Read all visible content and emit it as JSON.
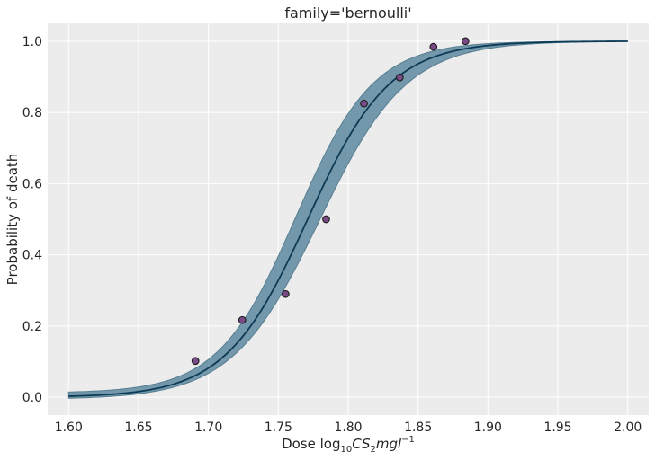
{
  "chart_data": {
    "type": "scatter",
    "title": "family='bernoulli'",
    "xlabel": {
      "prefix": "Dose log",
      "sub": "10",
      "math_a": "CS",
      "math_sub": "2",
      "math_b": "mgl",
      "sup": "−1"
    },
    "ylabel": "Probability of death",
    "xlim": [
      1.585,
      2.015
    ],
    "ylim": [
      -0.05,
      1.05
    ],
    "x_ticks": [
      "1.60",
      "1.65",
      "1.70",
      "1.75",
      "1.80",
      "1.85",
      "1.90",
      "1.95",
      "2.00"
    ],
    "y_ticks": [
      "0.0",
      "0.2",
      "0.4",
      "0.6",
      "0.8",
      "1.0"
    ],
    "grid": true,
    "background": "#ececec",
    "observed": {
      "x": [
        1.6907,
        1.7242,
        1.7552,
        1.7842,
        1.8113,
        1.8369,
        1.861,
        1.8839
      ],
      "y": [
        0.102,
        0.217,
        0.29,
        0.5,
        0.825,
        0.898,
        0.984,
        1.0
      ],
      "color": "#7a4a86",
      "edge": "#1c1c1c"
    },
    "fit": {
      "x0": 1.771,
      "k": 34.0,
      "band_low": {
        "x0": 1.7795,
        "k": 32.0,
        "floor": -0.006
      },
      "band_high": {
        "x0": 1.7625,
        "k": 36.0,
        "floor": 0.012
      },
      "range": [
        1.6,
        2.0
      ],
      "line_color": "#0d3a55",
      "band_color": "#5f8aa0"
    }
  }
}
